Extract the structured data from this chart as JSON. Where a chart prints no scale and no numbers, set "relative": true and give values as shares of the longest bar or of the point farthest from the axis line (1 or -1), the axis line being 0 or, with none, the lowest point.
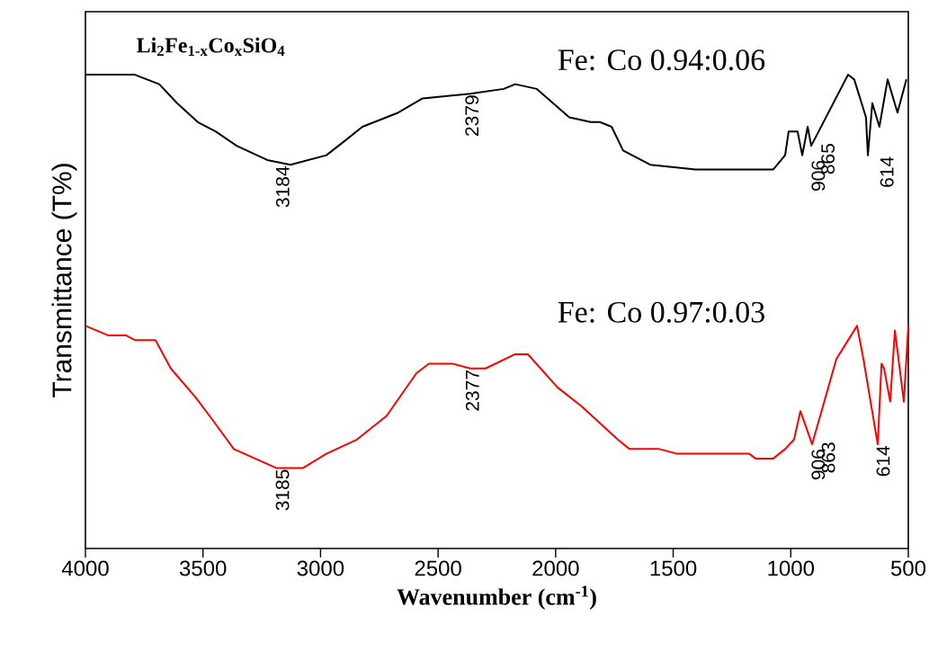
{
  "chart_data": {
    "type": "line",
    "relative": true,
    "title": "Li$_{2}$Fe$_{1-x}$Co$_{x}$SiO$_{4}$",
    "xlabel": "Wavenumber (cm$^{-1}$)",
    "ylabel": "Transmittance (T%)",
    "xlim": [
      4000,
      500
    ],
    "xticks": [
      4000,
      3500,
      3000,
      2500,
      2000,
      1500,
      1000,
      500
    ],
    "series": [
      {
        "name": "Fe: Co 0.94:0.06",
        "color": "#000000",
        "x": [
          4000,
          3790,
          3686,
          3610,
          3522,
          3445,
          3357,
          3227,
          3128,
          2975,
          2898,
          2822,
          2669,
          2566,
          2363,
          2221,
          2172,
          2080,
          1942,
          1850,
          1812,
          1762,
          1713,
          1598,
          1407,
          1074,
          1024,
          1009,
          971,
          951,
          928,
          913,
          756,
          730,
          680,
          672,
          653,
          623,
          588,
          546,
          508
        ],
        "values": [
          1.0,
          1.0,
          0.98,
          0.94,
          0.9,
          0.88,
          0.85,
          0.82,
          0.81,
          0.83,
          0.86,
          0.89,
          0.92,
          0.95,
          0.96,
          0.97,
          0.98,
          0.97,
          0.91,
          0.9,
          0.9,
          0.89,
          0.84,
          0.81,
          0.8,
          0.8,
          0.83,
          0.88,
          0.88,
          0.83,
          0.89,
          0.85,
          1.0,
          0.99,
          0.91,
          0.83,
          0.94,
          0.89,
          0.99,
          0.92,
          0.99
        ]
      },
      {
        "name": "Fe: Co 0.97:0.03",
        "color": "#ff0000",
        "x": [
          4000,
          3904,
          3828,
          3790,
          3702,
          3637,
          3533,
          3457,
          3369,
          3189,
          3074,
          2975,
          2845,
          2719,
          2592,
          2539,
          2439,
          2363,
          2298,
          2172,
          2118,
          1992,
          1889,
          1736,
          1686,
          1560,
          1483,
          1353,
          1177,
          1150,
          1074,
          1024,
          986,
          959,
          909,
          806,
          718,
          691,
          630,
          614,
          603,
          577,
          557,
          519,
          500
        ],
        "values": [
          0.47,
          0.45,
          0.45,
          0.44,
          0.44,
          0.38,
          0.32,
          0.27,
          0.21,
          0.17,
          0.17,
          0.2,
          0.23,
          0.28,
          0.37,
          0.39,
          0.39,
          0.38,
          0.38,
          0.41,
          0.41,
          0.34,
          0.3,
          0.23,
          0.21,
          0.21,
          0.2,
          0.2,
          0.2,
          0.19,
          0.19,
          0.21,
          0.23,
          0.29,
          0.22,
          0.4,
          0.47,
          0.4,
          0.22,
          0.39,
          0.38,
          0.31,
          0.46,
          0.31,
          0.47
        ]
      }
    ],
    "annotations": [
      {
        "text": "3184",
        "x": 3184,
        "y": 0.81
      },
      {
        "text": "2379",
        "x": 2379,
        "y": 0.96
      },
      {
        "text": "906",
        "x": 906,
        "y": 0.86
      },
      {
        "text": "865",
        "x": 865,
        "y": 0.9
      },
      {
        "text": "614",
        "x": 614,
        "y": 0.92
      },
      {
        "text": "3185",
        "x": 3185,
        "y": 0.17
      },
      {
        "text": "2377",
        "x": 2377,
        "y": 0.38
      },
      {
        "text": "906",
        "x": 906,
        "y": 0.22
      },
      {
        "text": "863",
        "x": 863,
        "y": 0.3
      },
      {
        "text": "614",
        "x": 630,
        "y": 0.22
      }
    ]
  }
}
